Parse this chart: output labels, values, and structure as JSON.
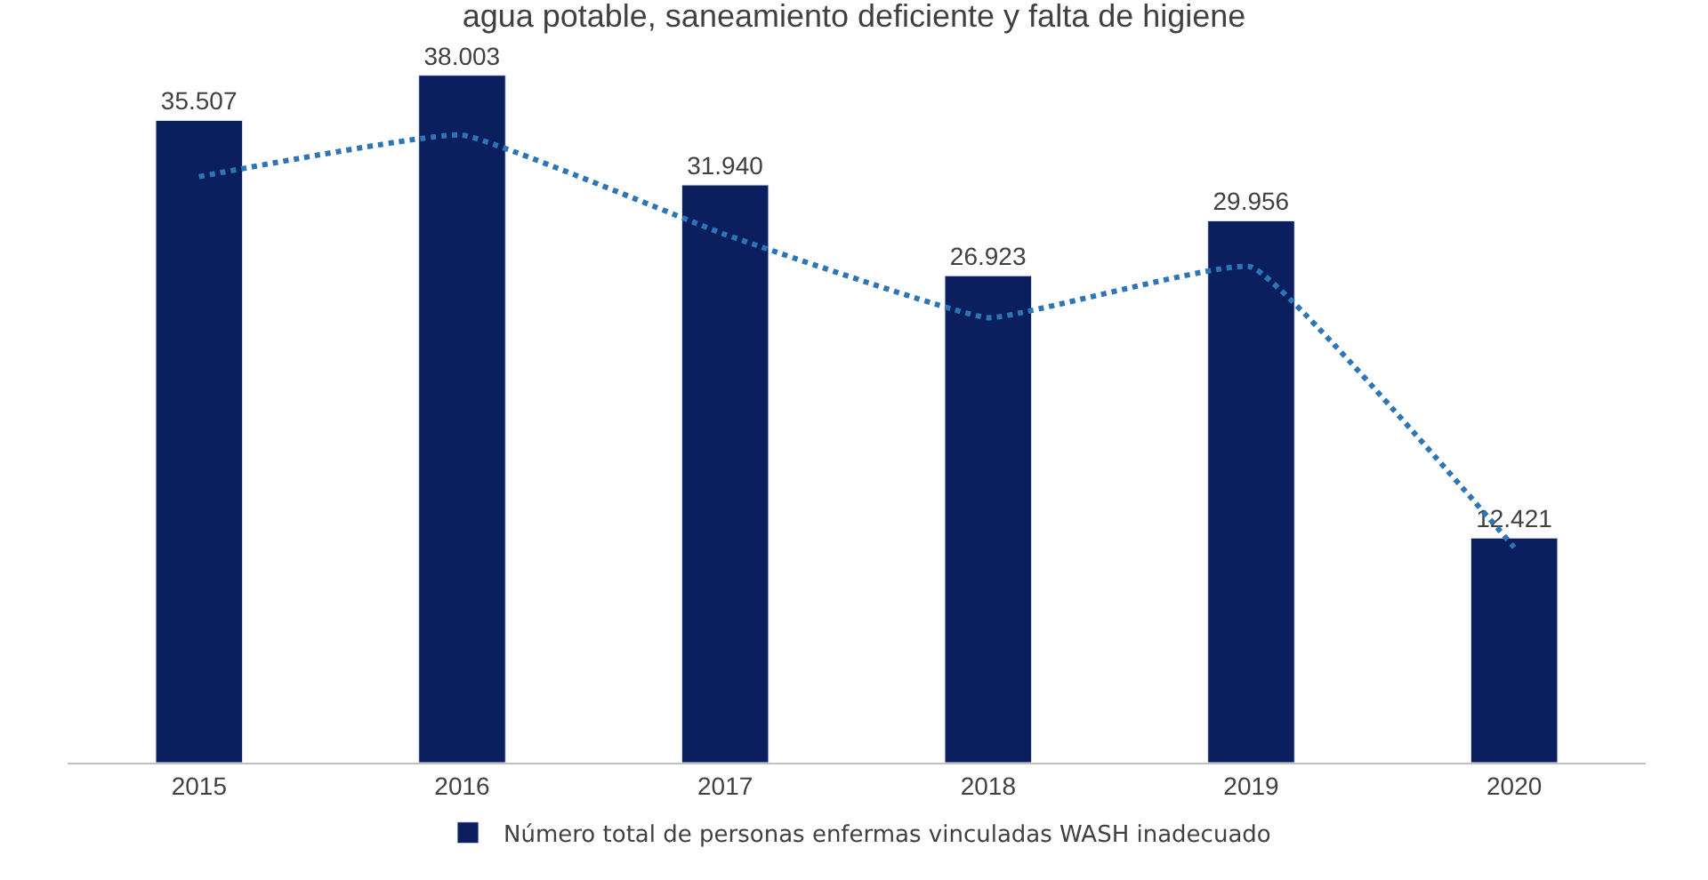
{
  "chart_data": {
    "type": "bar",
    "title": "agua potable, saneamiento deficiente y falta de higiene",
    "categories": [
      "2015",
      "2016",
      "2017",
      "2018",
      "2019",
      "2020"
    ],
    "series": [
      {
        "name": "Número total de personas enfermas vinculadas WASH inadecuado",
        "color": "#0b1f5e",
        "values": [
          35507,
          38003,
          31940,
          26923,
          29956,
          12421
        ],
        "value_labels": [
          "35.507",
          "38.003",
          "31.940",
          "26.923",
          "29.956",
          "12.421"
        ]
      },
      {
        "type": "line",
        "color": "#2e75b6",
        "line_style": "dotted",
        "values": [
          32400,
          34700,
          29200,
          24600,
          27400,
          11900
        ]
      }
    ],
    "legend": "bottom"
  }
}
